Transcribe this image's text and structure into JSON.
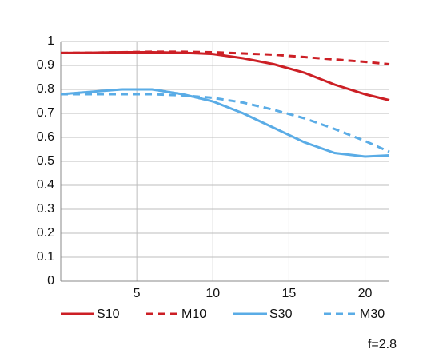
{
  "chart_data": {
    "type": "line",
    "x": [
      0,
      2,
      4,
      6,
      8,
      10,
      12,
      14,
      16,
      18,
      20,
      21.6
    ],
    "series": [
      {
        "name": "S10",
        "color": "#cc1f25",
        "linestyle": "solid",
        "values": [
          0.952,
          0.953,
          0.955,
          0.955,
          0.953,
          0.948,
          0.93,
          0.905,
          0.87,
          0.82,
          0.78,
          0.755
        ]
      },
      {
        "name": "M10",
        "color": "#cc1f25",
        "linestyle": "dashed",
        "values": [
          0.952,
          0.953,
          0.955,
          0.957,
          0.957,
          0.955,
          0.95,
          0.945,
          0.935,
          0.925,
          0.915,
          0.905
        ]
      },
      {
        "name": "S30",
        "color": "#5aace6",
        "linestyle": "solid",
        "values": [
          0.78,
          0.79,
          0.8,
          0.8,
          0.78,
          0.75,
          0.7,
          0.64,
          0.58,
          0.535,
          0.52,
          0.525
        ]
      },
      {
        "name": "M30",
        "color": "#5aace6",
        "linestyle": "dashed",
        "values": [
          0.78,
          0.78,
          0.78,
          0.78,
          0.775,
          0.765,
          0.745,
          0.715,
          0.68,
          0.635,
          0.585,
          0.54
        ]
      }
    ],
    "xlim": [
      0,
      21.6
    ],
    "xticks": [
      5,
      10,
      15,
      20
    ],
    "ylim": [
      0,
      1
    ],
    "yticks": [
      0,
      0.1,
      0.2,
      0.3,
      0.4,
      0.5,
      0.6,
      0.7,
      0.8,
      0.9,
      1
    ],
    "grid": true,
    "legend": "bottom",
    "annotation": "f=2.8"
  }
}
